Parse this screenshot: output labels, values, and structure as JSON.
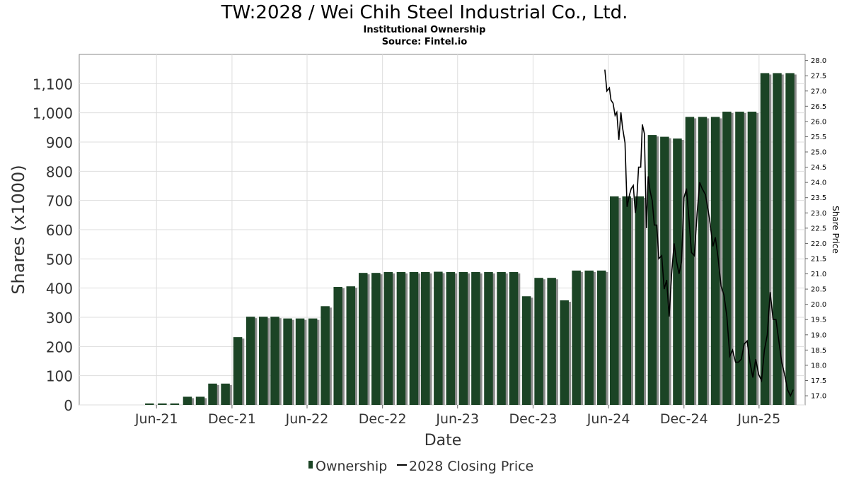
{
  "chart_data": {
    "type": "bar",
    "title": "TW:2028 / Wei Chih Steel Industrial Co., Ltd.",
    "subtitle": "Institutional Ownership",
    "source": "Source: Fintel.io",
    "xlabel": "Date",
    "ylabel": "Shares (x1000)",
    "y2label": "Share Price",
    "ylim": [
      0,
      1200
    ],
    "y2lim": [
      16.7,
      28.2
    ],
    "grid": true,
    "legend_position": "bottom",
    "x_ticks": [
      "Jun-21",
      "Dec-21",
      "Jun-22",
      "Dec-22",
      "Jun-23",
      "Dec-23",
      "Jun-24",
      "Dec-24",
      "Jun-25"
    ],
    "y_ticks": [
      "0",
      "100",
      "200",
      "300",
      "400",
      "500",
      "600",
      "700",
      "800",
      "900",
      "1,000",
      "1,100"
    ],
    "y2_ticks": [
      "17.0",
      "17.5",
      "18.0",
      "18.5",
      "19.0",
      "19.5",
      "20.0",
      "20.5",
      "21.0",
      "21.5",
      "22.0",
      "22.5",
      "23.0",
      "23.5",
      "24.0",
      "24.5",
      "25.0",
      "25.5",
      "26.0",
      "26.5",
      "27.0",
      "27.5",
      "28.0"
    ],
    "series": [
      {
        "name": "Ownership",
        "color": "#1b4425",
        "x": [
          "2021-05",
          "2021-06",
          "2021-07",
          "2021-08",
          "2021-09",
          "2021-10",
          "2021-11",
          "2021-12",
          "2022-01",
          "2022-02",
          "2022-03",
          "2022-04",
          "2022-05",
          "2022-06",
          "2022-07",
          "2022-08",
          "2022-09",
          "2022-10",
          "2022-11",
          "2022-12",
          "2023-01",
          "2023-02",
          "2023-03",
          "2023-04",
          "2023-05",
          "2023-06",
          "2023-07",
          "2023-08",
          "2023-09",
          "2023-10",
          "2023-11",
          "2023-12",
          "2024-01",
          "2024-02",
          "2024-03",
          "2024-04",
          "2024-05",
          "2024-06",
          "2024-07",
          "2024-08",
          "2024-09",
          "2024-10",
          "2024-11",
          "2024-12",
          "2025-01",
          "2025-02",
          "2025-03",
          "2025-04",
          "2025-05",
          "2025-06",
          "2025-07",
          "2025-08"
        ],
        "values": [
          5,
          5,
          5,
          28,
          28,
          73,
          73,
          232,
          302,
          302,
          302,
          296,
          296,
          296,
          338,
          404,
          406,
          452,
          452,
          455,
          455,
          455,
          455,
          456,
          455,
          455,
          455,
          455,
          455,
          455,
          372,
          435,
          435,
          358,
          460,
          460,
          460,
          714,
          714,
          714,
          924,
          918,
          912,
          986,
          986,
          986,
          1004,
          1004,
          1004,
          1136,
          1136,
          1136
        ]
      },
      {
        "name": "2028 Closing Price",
        "color": "#000000",
        "x": [
          "2024-05-23",
          "2024-05-28",
          "2024-06-03",
          "2024-06-07",
          "2024-06-12",
          "2024-06-17",
          "2024-06-21",
          "2024-06-26",
          "2024-07-01",
          "2024-07-05",
          "2024-07-11",
          "2024-07-16",
          "2024-07-22",
          "2024-07-26",
          "2024-07-31",
          "2024-08-05",
          "2024-08-08",
          "2024-08-13",
          "2024-08-18",
          "2024-08-22",
          "2024-08-27",
          "2024-09-01",
          "2024-09-05",
          "2024-09-10",
          "2024-09-15",
          "2024-09-20",
          "2024-09-26",
          "2024-10-01",
          "2024-10-08",
          "2024-10-14",
          "2024-10-20",
          "2024-10-26",
          "2024-11-01",
          "2024-11-07",
          "2024-11-13",
          "2024-11-19",
          "2024-11-25",
          "2024-12-01",
          "2024-12-07",
          "2024-12-13",
          "2024-12-19",
          "2024-12-26",
          "2025-01-02",
          "2025-01-08",
          "2025-01-14",
          "2025-01-22",
          "2025-02-01",
          "2025-02-09",
          "2025-02-15",
          "2025-02-22",
          "2025-03-01",
          "2025-03-08",
          "2025-03-15",
          "2025-03-22",
          "2025-03-29",
          "2025-04-05",
          "2025-04-12",
          "2025-04-19",
          "2025-04-26",
          "2025-05-03",
          "2025-05-10",
          "2025-05-17",
          "2025-05-24",
          "2025-05-31",
          "2025-06-07",
          "2025-06-14",
          "2025-06-21",
          "2025-06-28",
          "2025-07-05",
          "2025-07-12",
          "2025-07-19",
          "2025-07-26",
          "2025-08-02",
          "2025-08-09",
          "2025-08-16",
          "2025-08-23"
        ],
        "values": [
          27.7,
          27.0,
          27.1,
          26.7,
          26.6,
          26.2,
          26.3,
          25.4,
          26.3,
          25.8,
          25.3,
          23.2,
          23.6,
          23.8,
          23.9,
          23.0,
          23.3,
          24.5,
          24.5,
          25.9,
          25.6,
          22.5,
          24.2,
          23.7,
          23.4,
          22.6,
          22.6,
          21.5,
          21.6,
          20.5,
          20.8,
          19.6,
          21.0,
          22.0,
          21.4,
          21.0,
          21.4,
          23.5,
          23.8,
          22.8,
          21.7,
          21.6,
          23.0,
          24.0,
          23.8,
          23.6,
          22.8,
          21.9,
          22.2,
          21.5,
          20.6,
          20.3,
          19.6,
          18.3,
          18.5,
          18.1,
          18.1,
          18.2,
          18.7,
          18.8,
          18.1,
          17.6,
          18.2,
          17.7,
          17.5,
          18.5,
          19.0,
          20.4,
          19.5,
          19.5,
          18.8,
          18.1,
          17.7,
          17.2,
          17.0,
          17.2
        ]
      }
    ]
  }
}
